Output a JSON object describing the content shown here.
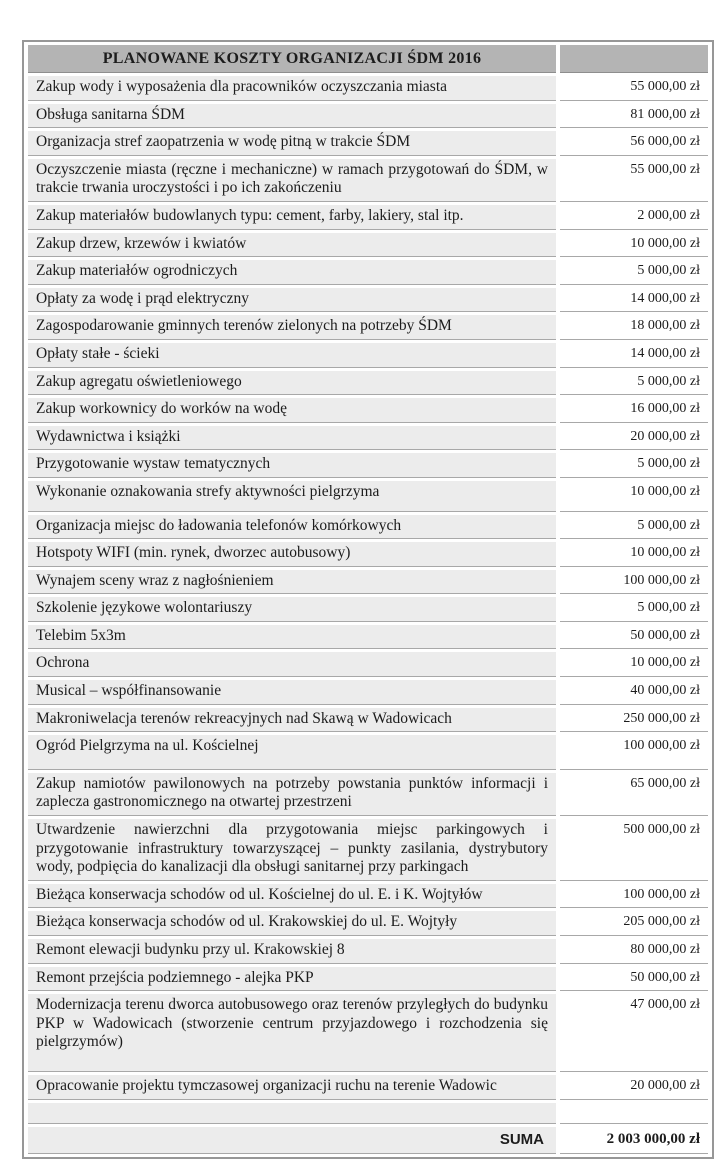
{
  "title": "PLANOWANE KOSZTY ORGANIZACJI ŚDM 2016",
  "rows": [
    {
      "label": "Zakup wody i wyposażenia dla pracowników oczyszczania miasta",
      "amount": "55 000,00 zł"
    },
    {
      "label": "Obsługa sanitarna ŚDM",
      "amount": "81 000,00 zł"
    },
    {
      "label": "Organizacja stref zaopatrzenia w wodę pitną w trakcie ŚDM",
      "amount": "56 000,00 zł"
    },
    {
      "label": "Oczyszczenie miasta (ręczne i mechaniczne) w ramach przygotowań do ŚDM, w trakcie trwania uroczystości i po ich zakończeniu",
      "amount": "55 000,00 zł"
    },
    {
      "label": "Zakup materiałów budowlanych typu: cement, farby, lakiery, stal itp.",
      "amount": "2 000,00 zł"
    },
    {
      "label": "Zakup drzew, krzewów i kwiatów",
      "amount": "10 000,00 zł"
    },
    {
      "label": "Zakup materiałów ogrodniczych",
      "amount": "5 000,00 zł"
    },
    {
      "label": "Opłaty za wodę i prąd elektryczny",
      "amount": "14 000,00 zł"
    },
    {
      "label": "Zagospodarowanie gminnych terenów zielonych na potrzeby ŚDM",
      "amount": "18 000,00 zł"
    },
    {
      "label": "Opłaty stałe - ścieki",
      "amount": "14 000,00 zł"
    },
    {
      "label": "Zakup agregatu oświetleniowego",
      "amount": "5 000,00 zł"
    },
    {
      "label": "Zakup workownicy do worków na wodę",
      "amount": "16 000,00 zł"
    },
    {
      "label": "Wydawnictwa i książki",
      "amount": "20 000,00 zł"
    },
    {
      "label": "Przygotowanie wystaw tematycznych",
      "amount": "5 000,00 zł"
    },
    {
      "label": "Wykonanie oznakowania strefy aktywności pielgrzyma",
      "amount": "10 000,00 zł"
    },
    {
      "label": "Organizacja miejsc do ładowania telefonów komórkowych",
      "amount": "5 000,00 zł"
    },
    {
      "label": "Hotspoty WIFI (min. rynek, dworzec autobusowy)",
      "amount": "10 000,00 zł"
    },
    {
      "label": "Wynajem sceny wraz z nagłośnieniem",
      "amount": "100 000,00 zł"
    },
    {
      "label": "Szkolenie językowe wolontariuszy",
      "amount": "5 000,00 zł"
    },
    {
      "label": "Telebim 5x3m",
      "amount": "50 000,00 zł"
    },
    {
      "label": "Ochrona",
      "amount": "10 000,00 zł"
    },
    {
      "label": "Musical – współfinansowanie",
      "amount": "40 000,00 zł"
    },
    {
      "label": "Makroniwelacja terenów rekreacyjnych nad Skawą w Wadowicach",
      "amount": "250 000,00 zł"
    },
    {
      "label": "Ogród Pielgrzyma na ul. Kościelnej",
      "amount": "100 000,00 zł"
    },
    {
      "label": "Zakup namiotów pawilonowych na potrzeby powstania punktów informacji i zaplecza gastronomicznego na otwartej przestrzeni",
      "amount": "65 000,00 zł"
    },
    {
      "label": "Utwardzenie nawierzchni dla przygotowania miejsc parkingowych i przygotowanie infrastruktury towarzyszącej – punkty zasilania, dystrybutory wody, podpięcia do kanalizacji dla obsługi sanitarnej przy parkingach",
      "amount": "500 000,00 zł"
    },
    {
      "label": "Bieżąca konserwacja schodów od ul. Kościelnej do ul. E. i K. Wojtyłów",
      "amount": "100 000,00 zł"
    },
    {
      "label": "Bieżąca konserwacja schodów od ul. Krakowskiej do ul. E. Wojtyły",
      "amount": "205 000,00 zł"
    },
    {
      "label": "Remont elewacji budynku przy ul. Krakowskiej 8",
      "amount": "80 000,00 zł"
    },
    {
      "label": "Remont przejścia podziemnego - alejka PKP",
      "amount": "50 000,00 zł"
    },
    {
      "label": "Modernizacja terenu dworca autobusowego oraz terenów przyległych do budynku PKP w Wadowicach (stworzenie centrum przyjazdowego i rozchodzenia się pielgrzymów)",
      "amount": "47 000,00 zł"
    },
    {
      "label": "Opracowanie projektu tymczasowej organizacji ruchu na terenie Wadowic",
      "amount": "20 000,00 zł"
    },
    {
      "label": "",
      "amount": ""
    }
  ],
  "summary": {
    "label": "SUMA",
    "amount": "2 003 000,00 zł"
  },
  "colors": {
    "header_bg": "#b4b4b4",
    "label_cell_bg": "#ececec",
    "amount_cell_bg": "#ffffff",
    "rule": "#a8a8a8",
    "outer_border": "#979797",
    "text": "#1c1c1c"
  }
}
